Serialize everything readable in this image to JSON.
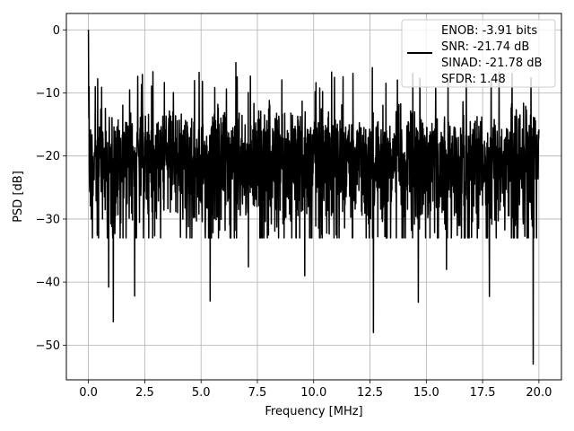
{
  "chart_data": {
    "type": "line",
    "title": "",
    "xlabel": "Frequency [MHz]",
    "ylabel": "PSD [dB]",
    "xlim": [
      -0.98,
      21.0
    ],
    "ylim": [
      -55.5,
      2.6
    ],
    "xticks": [
      0.0,
      2.5,
      5.0,
      7.5,
      10.0,
      12.5,
      15.0,
      17.5,
      20.0
    ],
    "xtick_labels": [
      "0.0",
      "2.5",
      "5.0",
      "7.5",
      "10.0",
      "12.5",
      "15.0",
      "17.5",
      "20.0"
    ],
    "yticks": [
      0,
      -10,
      -20,
      -30,
      -40,
      -50
    ],
    "ytick_labels": [
      "0",
      "−10",
      "−20",
      "−30",
      "−40",
      "−50"
    ],
    "grid": true,
    "legend": {
      "placement": "top-right",
      "entries": [
        "ENOB: -3.91 bits",
        "SNR: -21.74 dB",
        "SINAD: -21.78 dB",
        "SFDR: 1.48"
      ]
    },
    "series": [
      {
        "color": "#000000",
        "x_range": [
          0.0,
          20.0
        ],
        "points": 2048,
        "noise_floor_db": -21.8,
        "typical_span_db": [
          -30,
          -12
        ],
        "peak_db": 0.0,
        "peak_x": 0.0,
        "min_db": -53.0,
        "min_x": 19.75,
        "notable_dips": [
          {
            "x": 0.9,
            "y": -40.8
          },
          {
            "x": 1.1,
            "y": -46.3
          },
          {
            "x": 2.05,
            "y": -42.2
          },
          {
            "x": 5.4,
            "y": -43.0
          },
          {
            "x": 7.1,
            "y": -37.6
          },
          {
            "x": 9.6,
            "y": -39.0
          },
          {
            "x": 12.65,
            "y": -48.0
          },
          {
            "x": 14.65,
            "y": -43.2
          },
          {
            "x": 15.9,
            "y": -38.0
          },
          {
            "x": 17.8,
            "y": -42.3
          }
        ],
        "notable_peaks": [
          {
            "x": 6.55,
            "y": -5.2
          },
          {
            "x": 10.8,
            "y": -6.7
          },
          {
            "x": 12.6,
            "y": -6.0
          },
          {
            "x": 14.4,
            "y": -6.9
          }
        ]
      }
    ]
  }
}
